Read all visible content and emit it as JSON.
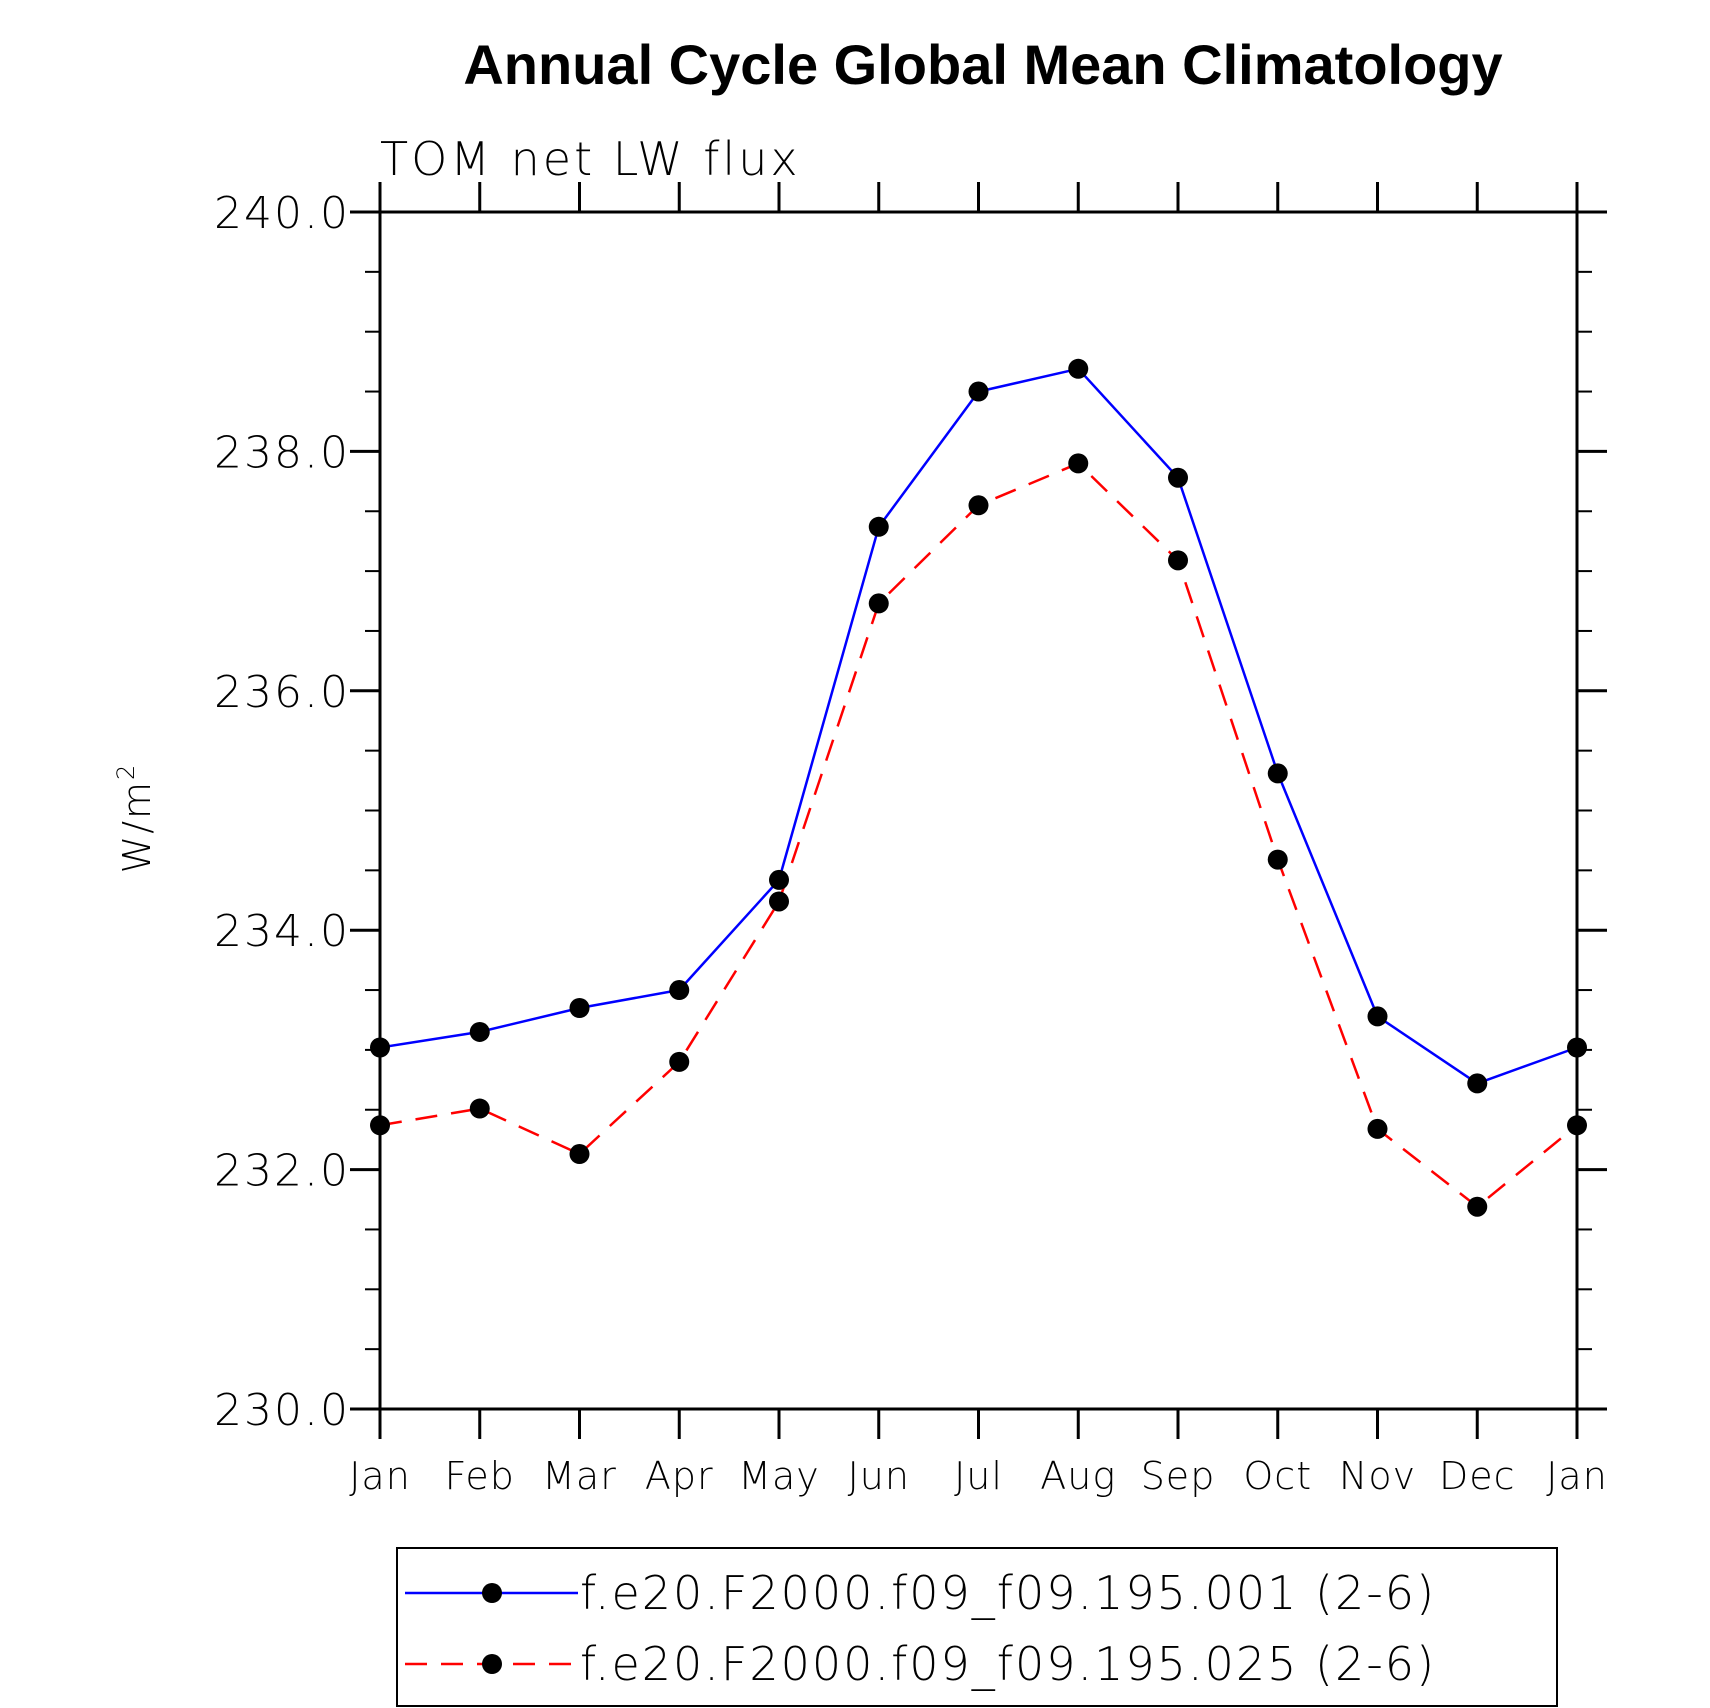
{
  "chart_data": {
    "type": "line",
    "title": "Annual Cycle Global Mean Climatology",
    "subtitle": "TOM net LW flux",
    "xlabel": "",
    "ylabel": "W/m",
    "ylabel_superscript": "2",
    "categories": [
      "Jan",
      "Feb",
      "Mar",
      "Apr",
      "May",
      "Jun",
      "Jul",
      "Aug",
      "Sep",
      "Oct",
      "Nov",
      "Dec",
      "Jan"
    ],
    "ylim": [
      230.0,
      240.0
    ],
    "yticks": [
      230.0,
      232.0,
      234.0,
      236.0,
      238.0,
      240.0
    ],
    "ytick_labels": [
      "230.0",
      "232.0",
      "234.0",
      "236.0",
      "238.0",
      "240.0"
    ],
    "yminor_step": 0.5,
    "grid": false,
    "legend_position": "bottom",
    "series": [
      {
        "name": "f.e20.F2000.f09_f09.195.001 (2-6)",
        "color": "#0000ff",
        "line_style": "solid",
        "marker_color": "#000000",
        "values": [
          233.02,
          233.15,
          233.35,
          233.5,
          234.42,
          237.37,
          238.5,
          238.69,
          237.78,
          235.31,
          233.28,
          232.72,
          233.02
        ]
      },
      {
        "name": "f.e20.F2000.f09_f09.195.025 (2-6)",
        "color": "#ff0000",
        "line_style": "dashed",
        "marker_color": "#000000",
        "values": [
          232.37,
          232.51,
          232.13,
          232.9,
          234.24,
          236.73,
          237.55,
          237.9,
          237.09,
          234.59,
          232.34,
          231.69,
          232.37
        ]
      }
    ]
  }
}
